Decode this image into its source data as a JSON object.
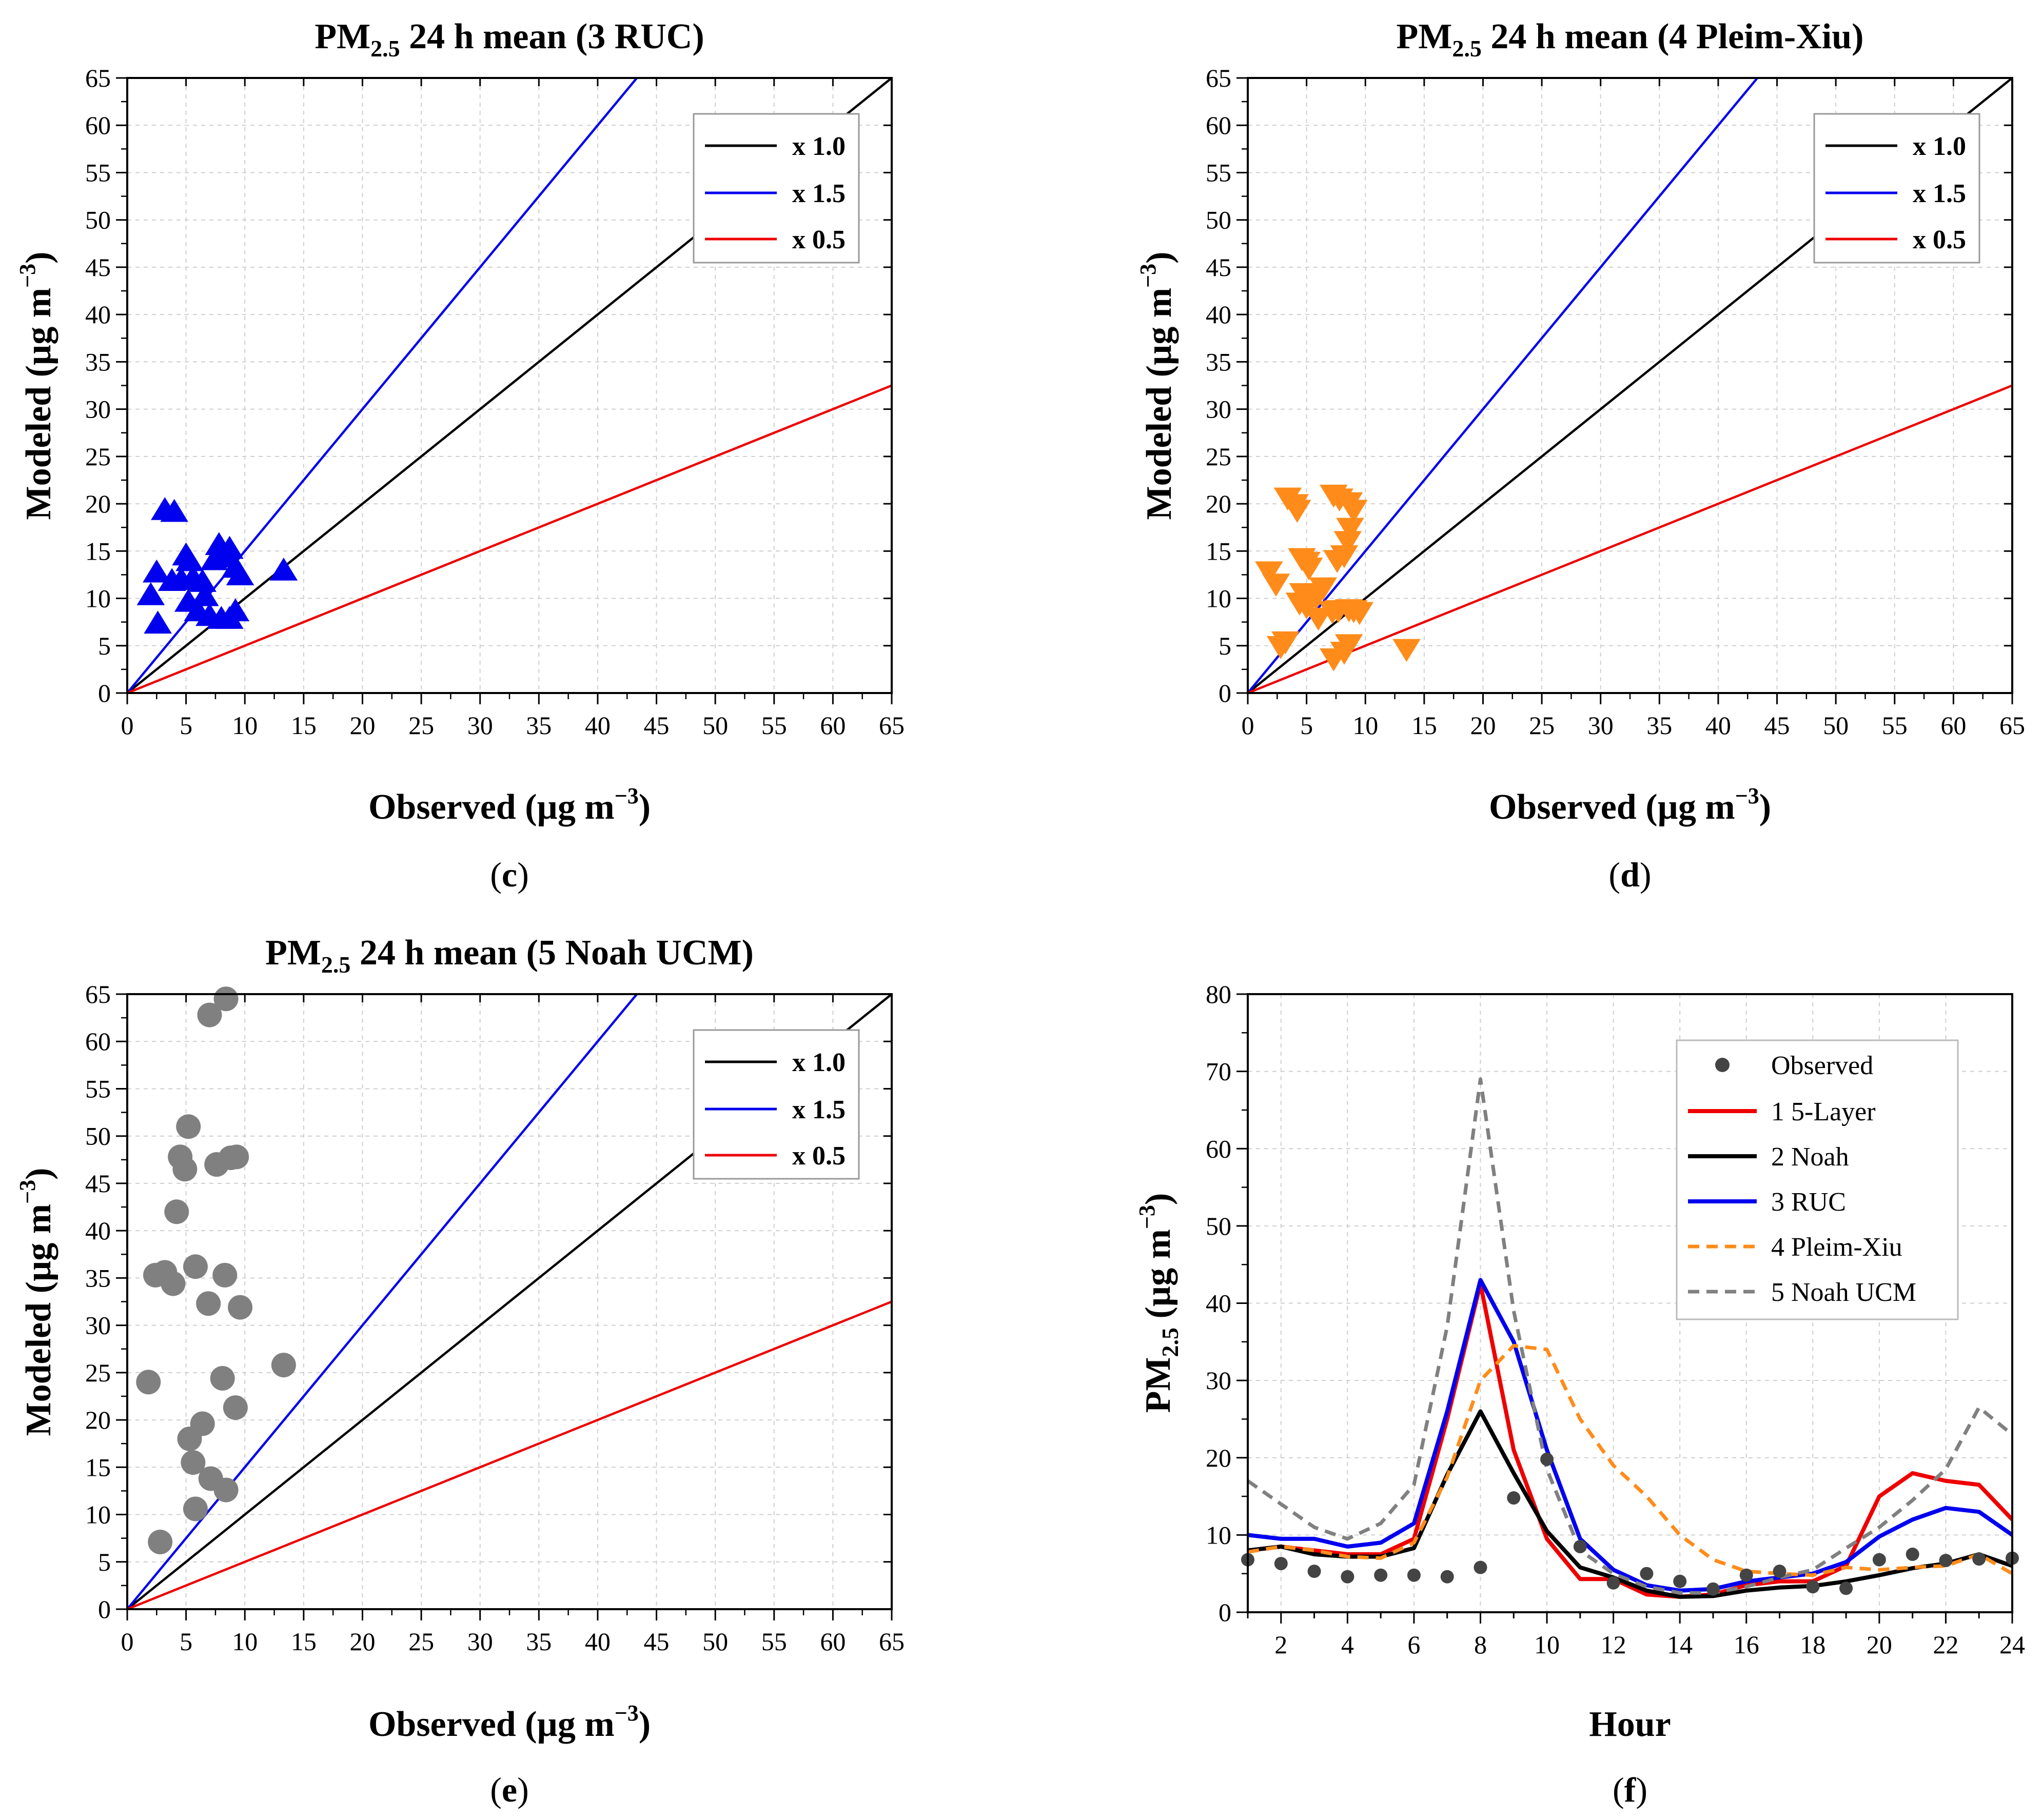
{
  "chart_data": [
    {
      "id": "c",
      "type": "scatter",
      "panel_label": "c",
      "title_pre": "PM",
      "title_sub": "2.5",
      "title_post": " 24 h mean (3 RUC)",
      "xlabel_pre": "Observed (µg m",
      "xlabel_sup": "−3",
      "xlabel_post": ")",
      "ylabel_pre": "Modeled (µg m",
      "ylabel_sup": "−3",
      "ylabel_post": ")",
      "xlim": [
        0,
        65
      ],
      "ylim": [
        0,
        65
      ],
      "ticks": [
        0,
        5,
        10,
        15,
        20,
        25,
        30,
        35,
        40,
        45,
        50,
        55,
        60,
        65
      ],
      "grid": true,
      "marker": "triangle-up",
      "marker_color": "#0000ee",
      "lines": [
        {
          "label": "x 1.0",
          "slope": 1.0,
          "color": "#000000"
        },
        {
          "label": "x 1.5",
          "slope": 1.5,
          "color": "#0000ee"
        },
        {
          "label": "x 0.5",
          "slope": 0.5,
          "color": "#ee0000"
        }
      ],
      "legend_position": "top-right",
      "points": [
        [
          2,
          10.3
        ],
        [
          2.5,
          12.7
        ],
        [
          2.6,
          7.3
        ],
        [
          3.2,
          19.3
        ],
        [
          4,
          19.1
        ],
        [
          3.8,
          11.8
        ],
        [
          4.6,
          11.9
        ],
        [
          5,
          14.5
        ],
        [
          5.3,
          13.9
        ],
        [
          5.6,
          12.1
        ],
        [
          5.2,
          9.6
        ],
        [
          6,
          8.6
        ],
        [
          6.4,
          11.7
        ],
        [
          7,
          8.1
        ],
        [
          7.4,
          14
        ],
        [
          7.8,
          15.6
        ],
        [
          8.3,
          14.3
        ],
        [
          8.7,
          15.2
        ],
        [
          9.2,
          13.2
        ],
        [
          9.6,
          12.4
        ],
        [
          8,
          7.8
        ],
        [
          8.7,
          7.8
        ],
        [
          9.2,
          8.6
        ],
        [
          13.3,
          12.9
        ],
        [
          6.6,
          10.2
        ]
      ]
    },
    {
      "id": "d",
      "type": "scatter",
      "panel_label": "d",
      "title_pre": "PM",
      "title_sub": "2.5",
      "title_post": " 24 h mean (4 Pleim-Xiu)",
      "xlabel_pre": "Observed (µg m",
      "xlabel_sup": "−3",
      "xlabel_post": ")",
      "ylabel_pre": "Modeled (µg m",
      "ylabel_sup": "−3",
      "ylabel_post": ")",
      "xlim": [
        0,
        65
      ],
      "ylim": [
        0,
        65
      ],
      "ticks": [
        0,
        5,
        10,
        15,
        20,
        25,
        30,
        35,
        40,
        45,
        50,
        55,
        60,
        65
      ],
      "grid": true,
      "marker": "triangle-down",
      "marker_color": "#ff8c1a",
      "lines": [
        {
          "label": "x 1.0",
          "slope": 1.0,
          "color": "#000000"
        },
        {
          "label": "x 1.5",
          "slope": 1.5,
          "color": "#0000ee"
        },
        {
          "label": "x 0.5",
          "slope": 0.5,
          "color": "#ee0000"
        }
      ],
      "legend_position": "top-right",
      "points": [
        [
          1.8,
          12.9
        ],
        [
          2.4,
          11.6
        ],
        [
          2.8,
          5
        ],
        [
          3.2,
          5.5
        ],
        [
          3.4,
          20.7
        ],
        [
          4.2,
          19.4
        ],
        [
          4,
          20
        ],
        [
          4.6,
          14.3
        ],
        [
          5,
          13.9
        ],
        [
          5.2,
          13.3
        ],
        [
          4.7,
          10.6
        ],
        [
          4.4,
          9.6
        ],
        [
          5.8,
          10.2
        ],
        [
          5,
          9.2
        ],
        [
          6,
          8
        ],
        [
          6.4,
          11.2
        ],
        [
          7.3,
          21
        ],
        [
          7.8,
          20.6
        ],
        [
          8.6,
          20.2
        ],
        [
          9,
          19.4
        ],
        [
          8.7,
          17.5
        ],
        [
          8.5,
          16.1
        ],
        [
          7.6,
          14.1
        ],
        [
          8.2,
          14.6
        ],
        [
          7.2,
          8.7
        ],
        [
          7.7,
          8.8
        ],
        [
          8.6,
          8.9
        ],
        [
          9,
          8.8
        ],
        [
          9.5,
          8.6
        ],
        [
          7.3,
          3.7
        ],
        [
          8.2,
          4.4
        ],
        [
          8.6,
          5.2
        ],
        [
          13.5,
          4.7
        ]
      ]
    },
    {
      "id": "e",
      "type": "scatter",
      "panel_label": "e",
      "title_pre": "PM",
      "title_sub": "2.5",
      "title_post": " 24 h mean (5 Noah UCM)",
      "xlabel_pre": "Observed (µg m",
      "xlabel_sup": "−3",
      "xlabel_post": ")",
      "ylabel_pre": "Modeled (µg m",
      "ylabel_sup": "−3",
      "ylabel_post": ")",
      "xlim": [
        0,
        65
      ],
      "ylim": [
        0,
        65
      ],
      "ticks": [
        0,
        5,
        10,
        15,
        20,
        25,
        30,
        35,
        40,
        45,
        50,
        55,
        60,
        65
      ],
      "grid": true,
      "marker": "circle",
      "marker_color": "#808080",
      "lines": [
        {
          "label": "x 1.0",
          "slope": 1.0,
          "color": "#000000"
        },
        {
          "label": "x 1.5",
          "slope": 1.5,
          "color": "#0000ee"
        },
        {
          "label": "x 0.5",
          "slope": 0.5,
          "color": "#ee0000"
        }
      ],
      "legend_position": "top-right",
      "points": [
        [
          1.8,
          24
        ],
        [
          2.4,
          35.3
        ],
        [
          2.8,
          7.1
        ],
        [
          3.2,
          35.6
        ],
        [
          3.9,
          34.4
        ],
        [
          4.2,
          42
        ],
        [
          4.5,
          47.8
        ],
        [
          4.9,
          46.5
        ],
        [
          5.2,
          51
        ],
        [
          5.3,
          18
        ],
        [
          5.6,
          15.5
        ],
        [
          5.8,
          36.2
        ],
        [
          5.8,
          10.6
        ],
        [
          6.4,
          19.6
        ],
        [
          6.9,
          32.3
        ],
        [
          7,
          62.8
        ],
        [
          7.1,
          13.8
        ],
        [
          7.6,
          47
        ],
        [
          8.1,
          24.4
        ],
        [
          8.3,
          35.3
        ],
        [
          8.4,
          12.6
        ],
        [
          8.4,
          64.5
        ],
        [
          8.8,
          47.7
        ],
        [
          9.3,
          47.8
        ],
        [
          9.2,
          21.3
        ],
        [
          9.6,
          31.9
        ],
        [
          13.3,
          25.8
        ]
      ]
    },
    {
      "id": "f",
      "type": "line",
      "panel_label": "f",
      "xlabel": "Hour",
      "ylabel_pre": "PM",
      "ylabel_sub": "2.5",
      "ylabel_mid": " (µg m",
      "ylabel_sup": "−3",
      "ylabel_post": ")",
      "xlim": [
        1,
        24
      ],
      "ylim": [
        0,
        80
      ],
      "xticks": [
        2,
        4,
        6,
        8,
        10,
        12,
        14,
        16,
        18,
        20,
        22,
        24
      ],
      "yticks": [
        0,
        10,
        20,
        30,
        40,
        50,
        60,
        70,
        80
      ],
      "grid": true,
      "legend_position": "top-right",
      "x": [
        1,
        2,
        3,
        4,
        5,
        6,
        7,
        8,
        9,
        10,
        11,
        12,
        13,
        14,
        15,
        16,
        17,
        18,
        19,
        20,
        21,
        22,
        23,
        24
      ],
      "observed": {
        "name": "Observed",
        "color": "#444444",
        "values": [
          6.8,
          6.3,
          5.3,
          4.6,
          4.8,
          4.8,
          4.6,
          5.8,
          14.8,
          19.8,
          8.5,
          3.8,
          5,
          4,
          3,
          4.8,
          5.3,
          3.3,
          3.1,
          6.8,
          7.5,
          6.7,
          6.9,
          7
        ]
      },
      "series": [
        {
          "name": "1 5-Layer",
          "color": "#ee0000",
          "dash": "",
          "width": 8,
          "values": [
            8,
            8.5,
            8,
            7.5,
            7.5,
            9.5,
            25,
            42.5,
            21,
            9.5,
            4.3,
            4.3,
            2.3,
            2,
            2.3,
            3.5,
            4,
            4,
            6,
            15,
            18,
            17,
            16.5,
            12
          ]
        },
        {
          "name": "2 Noah",
          "color": "#000000",
          "dash": "",
          "width": 8,
          "values": [
            8,
            8.5,
            7.5,
            7.2,
            7.2,
            8.3,
            17.8,
            26,
            18,
            10.5,
            5.8,
            4.5,
            2.8,
            2,
            2.1,
            2.8,
            3.2,
            3.4,
            4,
            4.8,
            5.7,
            6.3,
            7.5,
            6
          ]
        },
        {
          "name": "3 RUC",
          "color": "#0000ee",
          "dash": "",
          "width": 8,
          "values": [
            10,
            9.5,
            9.5,
            8.5,
            9,
            11.5,
            26,
            43,
            35,
            21,
            9.5,
            5.5,
            3.5,
            2.8,
            3,
            4,
            4.5,
            5,
            6.5,
            9.8,
            12,
            13.5,
            13,
            10
          ]
        },
        {
          "name": "4 Pleim-Xiu",
          "color": "#ff8c1a",
          "dash": "22,14",
          "width": 7,
          "values": [
            7.8,
            8.5,
            8,
            7.2,
            7,
            9,
            17.5,
            30,
            34.5,
            34,
            25,
            19,
            15,
            10,
            6.8,
            5.3,
            5,
            4.8,
            5.8,
            5.5,
            5.8,
            6,
            7.5,
            5
          ]
        },
        {
          "name": "5 Noah UCM",
          "color": "#808080",
          "dash": "22,14",
          "width": 7,
          "values": [
            17,
            14,
            11,
            9.5,
            11.5,
            16.5,
            37,
            69,
            39,
            18.5,
            8,
            5,
            3.3,
            2.5,
            2.5,
            3.3,
            4.5,
            5.5,
            8.3,
            11,
            14.5,
            18.5,
            26.5,
            23
          ]
        }
      ]
    }
  ]
}
